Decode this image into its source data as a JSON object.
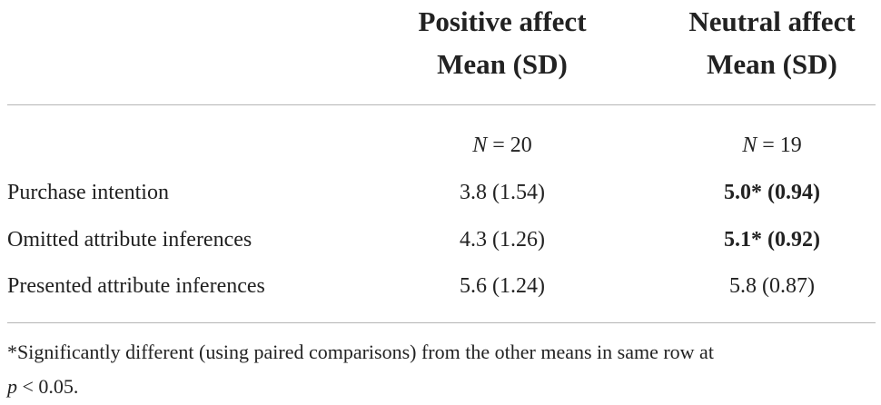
{
  "table": {
    "columns": [
      {
        "line1": "Positive affect",
        "line2": "Mean (SD)",
        "n_label": "N",
        "n_value": "= 20"
      },
      {
        "line1": "Neutral affect",
        "line2": "Mean (SD)",
        "n_label": "N",
        "n_value": "= 19"
      }
    ],
    "rows": [
      {
        "label": "Purchase intention",
        "values": [
          "3.8 (1.54)",
          "5.0* (0.94)"
        ],
        "bold": [
          false,
          true
        ]
      },
      {
        "label": "Omitted attribute inferences",
        "values": [
          "4.3 (1.26)",
          "5.1* (0.92)"
        ],
        "bold": [
          false,
          true
        ]
      },
      {
        "label": "Presented attribute inferences",
        "values": [
          "5.6 (1.24)",
          "5.8 (0.87)"
        ],
        "bold": [
          false,
          false
        ]
      }
    ]
  },
  "footnote": {
    "line1": "*Significantly different (using paired comparisons) from the other means in same row at",
    "p_symbol": "p",
    "line2_rest": " < 0.05."
  }
}
